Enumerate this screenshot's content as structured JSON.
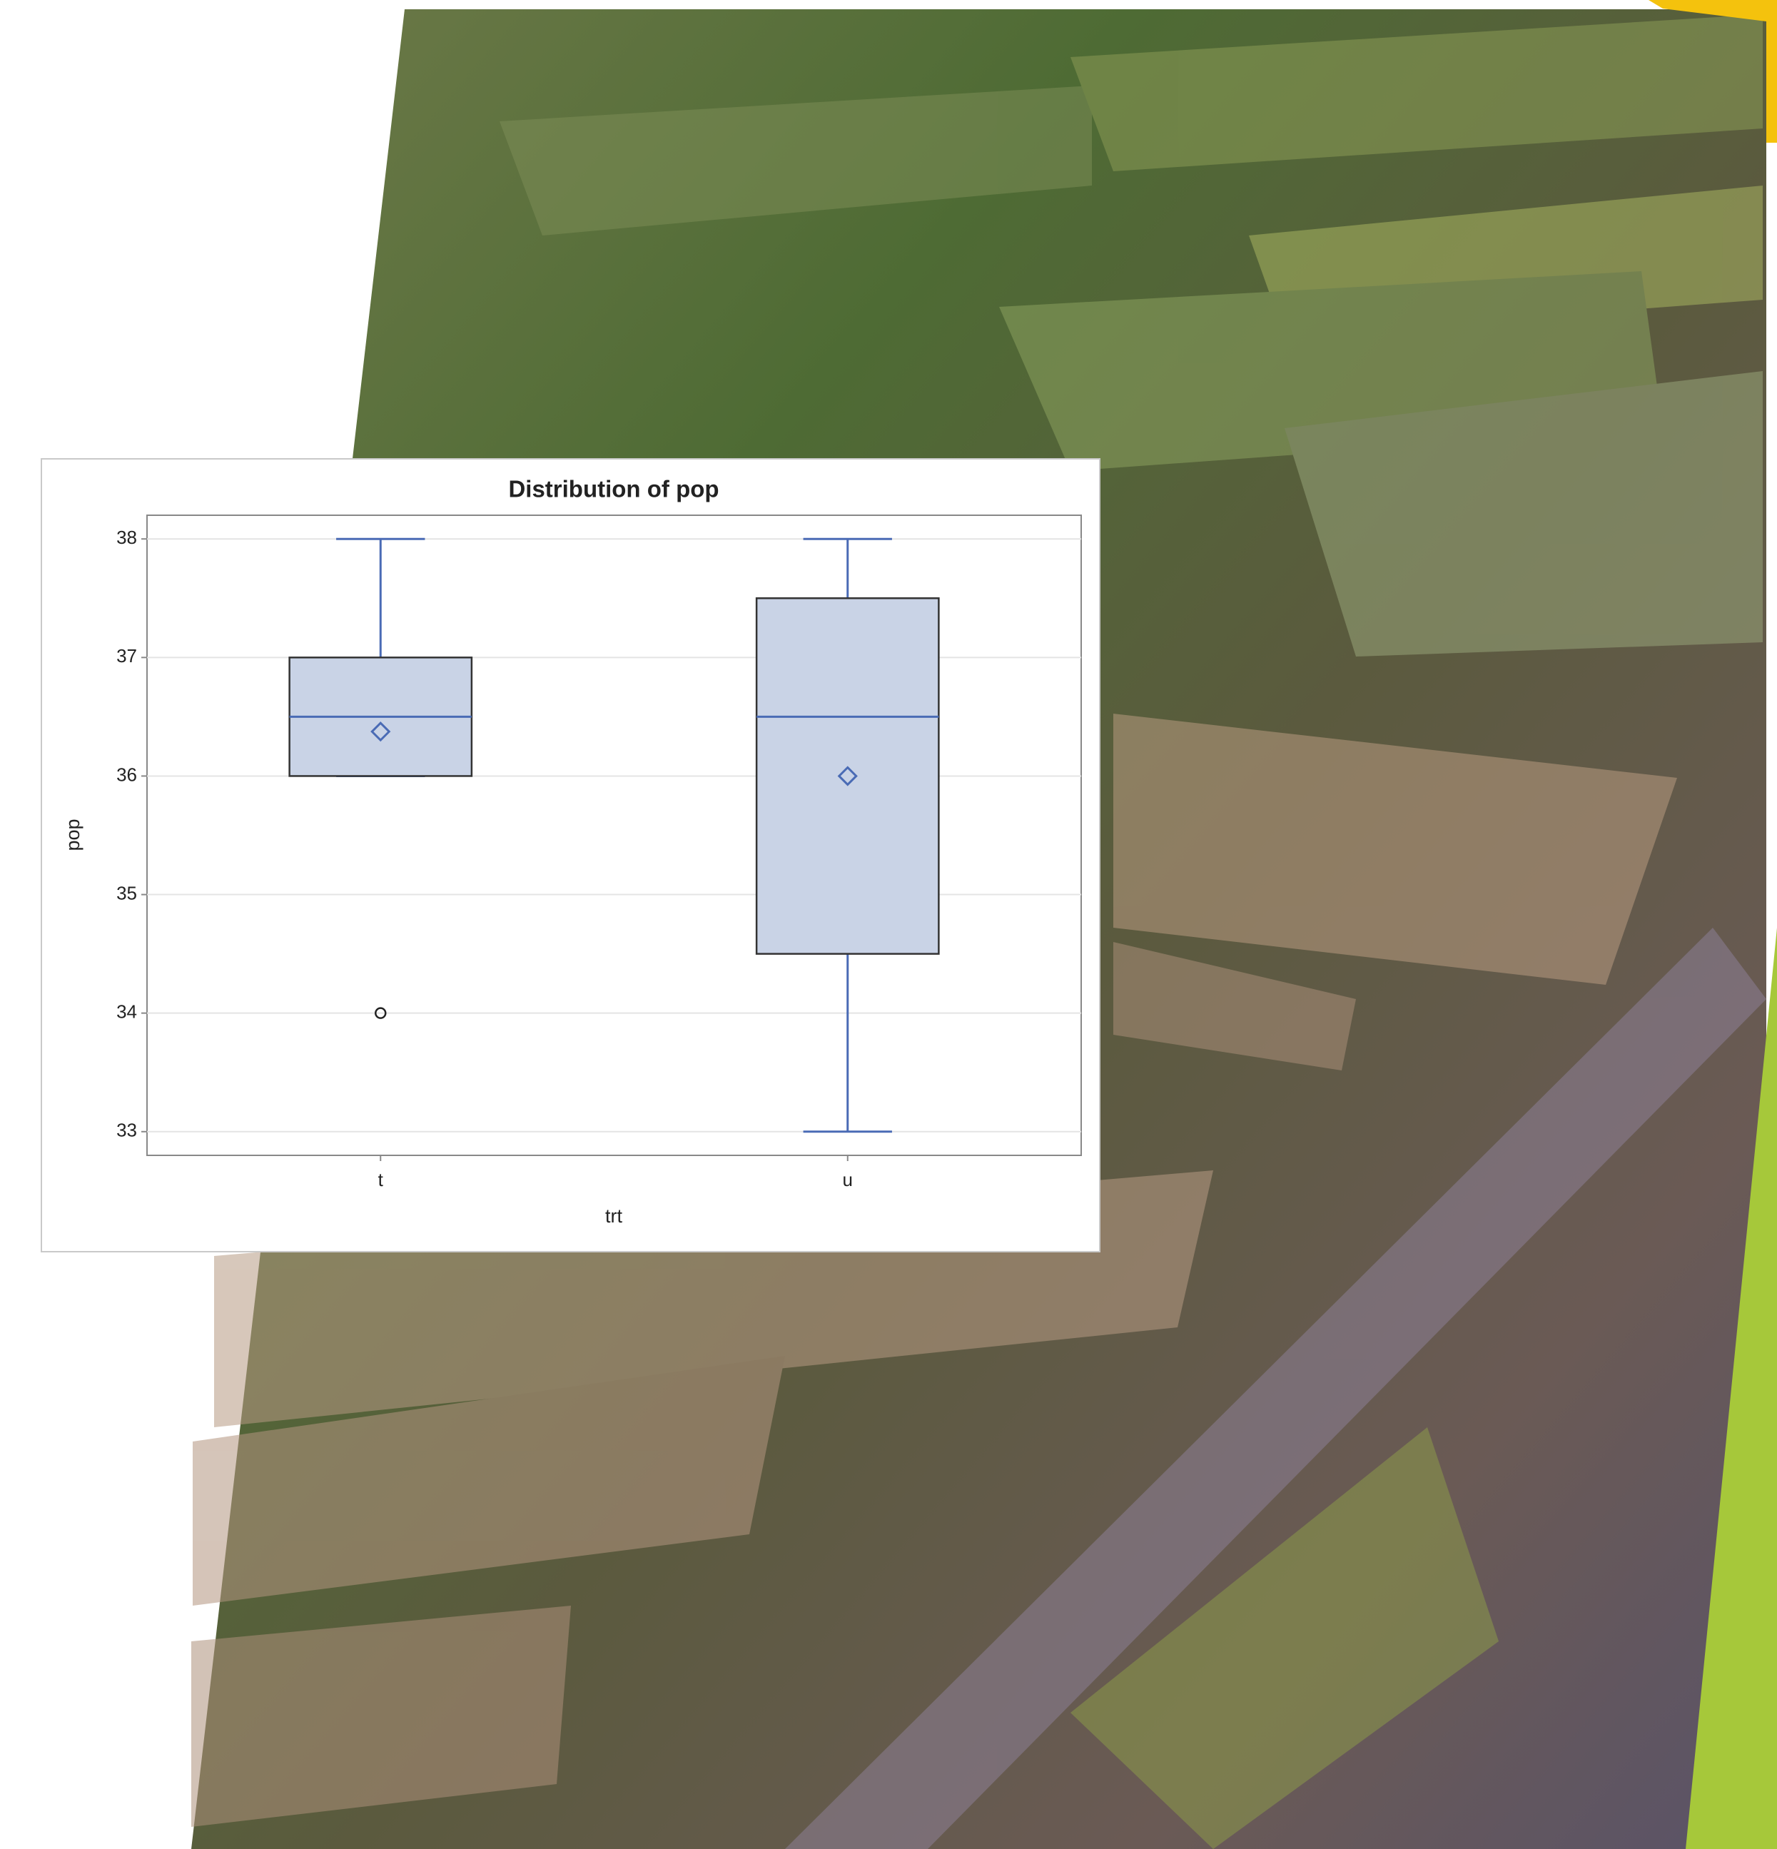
{
  "chart_data": {
    "type": "box",
    "title": "Distribution of pop",
    "x_label": "trt",
    "y_label": "pop",
    "categories": [
      "t",
      "u"
    ],
    "boxes": [
      {
        "min": 36,
        "q1": 36,
        "median": 36.5,
        "q3": 37,
        "max": 38,
        "mean": 36.375,
        "outliers": [
          34
        ]
      },
      {
        "min": 33,
        "q1": 34.5,
        "median": 36.5,
        "q3": 37.5,
        "max": 38,
        "mean": 36,
        "outliers": []
      }
    ],
    "color": "#4a6bb5",
    "fill": "#c9d3e6",
    "ylim": [
      32.8,
      38.2
    ],
    "yticks": [
      33,
      34,
      35,
      36,
      37,
      38
    ],
    "grid": true
  }
}
